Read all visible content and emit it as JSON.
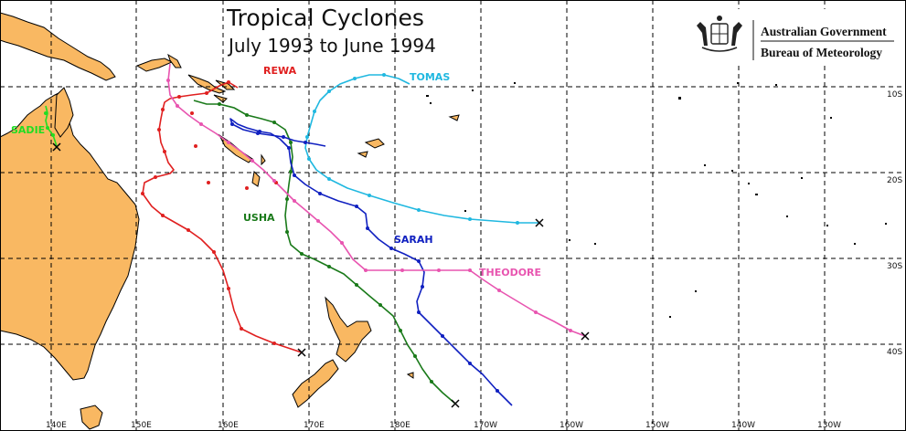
{
  "header": {
    "title": "Tropical Cyclones",
    "subtitle": "July 1993 to June 1994"
  },
  "agency": {
    "line1": "Australian Government",
    "line2": "Bureau of Meteorology"
  },
  "axes": {
    "longitude_labels": [
      "140E",
      "150E",
      "160E",
      "170E",
      "180E",
      "170W",
      "160W",
      "150W",
      "140W",
      "130W"
    ],
    "latitude_labels": [
      "10S",
      "20S",
      "30S",
      "40S"
    ]
  },
  "cyclones": [
    {
      "name": "SADIE",
      "color": "#22dd22"
    },
    {
      "name": "REWA",
      "color": "#e02020"
    },
    {
      "name": "TOMAS",
      "color": "#20b8e0"
    },
    {
      "name": "USHA",
      "color": "#1a7a1a"
    },
    {
      "name": "SARAH",
      "color": "#1020c0"
    },
    {
      "name": "THEODORE",
      "color": "#e855b0"
    }
  ]
}
